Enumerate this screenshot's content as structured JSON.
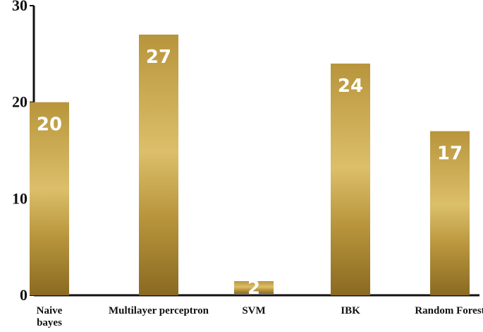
{
  "chart_data": {
    "type": "bar",
    "categories": [
      [
        "Naive",
        "bayes"
      ],
      [
        "Multilayer perceptron"
      ],
      [
        "SVM"
      ],
      [
        "IBK"
      ],
      [
        "Random Forest"
      ]
    ],
    "values": [
      20,
      27,
      2,
      24,
      17
    ],
    "data_labels": [
      "20",
      "27",
      "2",
      "24",
      "17"
    ],
    "ylim": [
      0,
      30
    ],
    "yticks": [
      0,
      10,
      20,
      30
    ],
    "title": "",
    "xlabel": "",
    "ylabel": "",
    "grid": false,
    "colors": {
      "bar_dark": "#8a6a22",
      "bar_mid": "#b8953c",
      "bar_light": "#dcbf6a",
      "axis": "#111111"
    }
  }
}
